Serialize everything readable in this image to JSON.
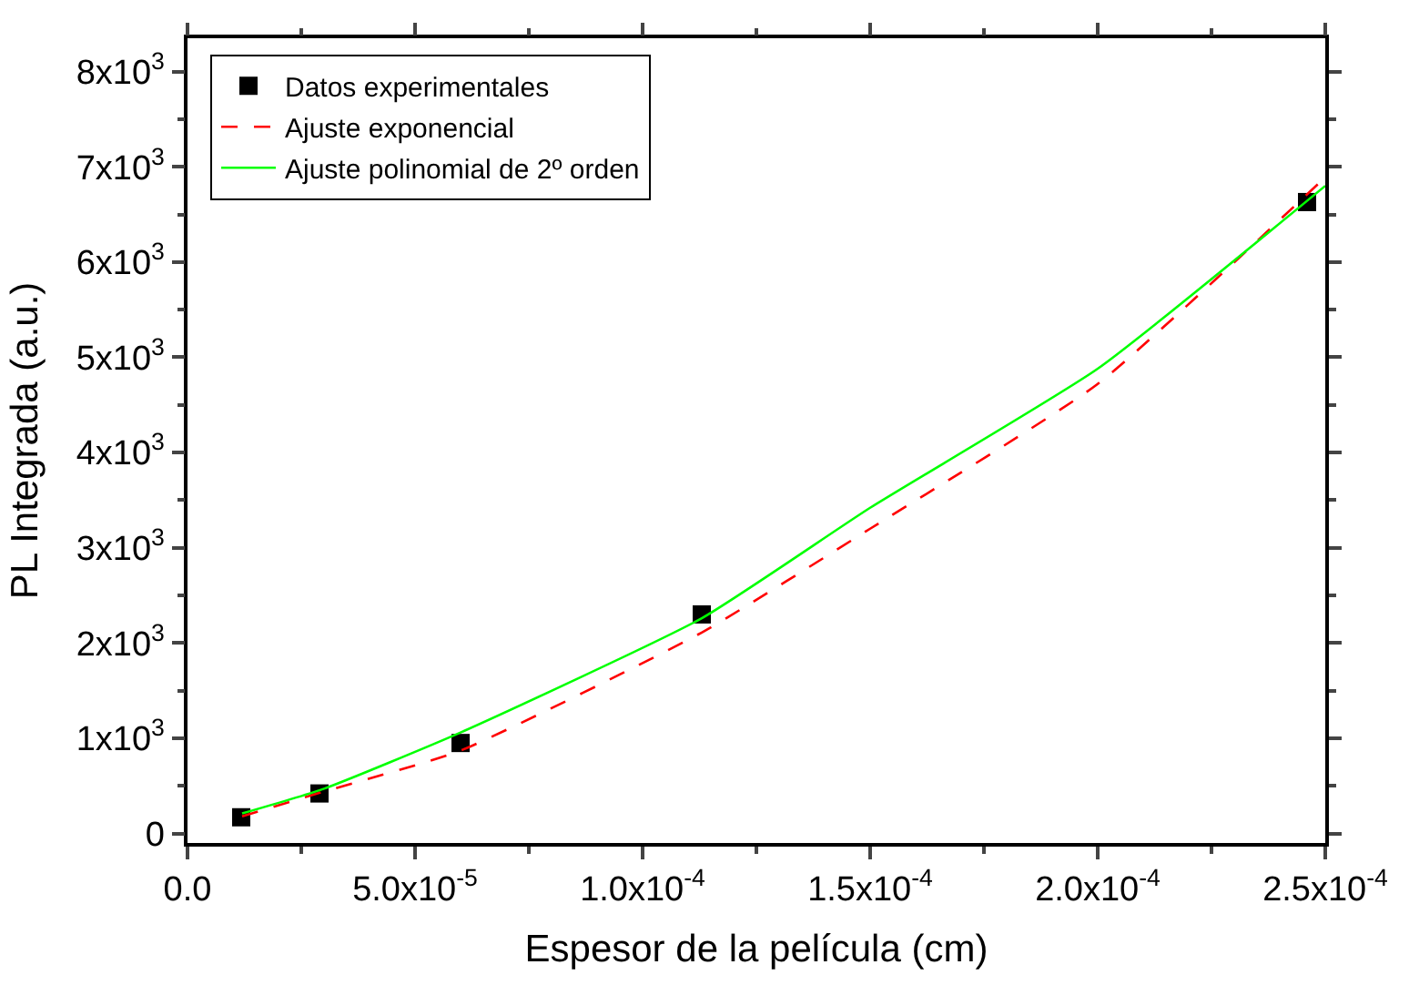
{
  "chart_data": {
    "type": "scatter",
    "xlabel": "Espesor de la película (cm)",
    "ylabel": "PL Integrada (a.u.)",
    "xlim": [
      0,
      0.00025
    ],
    "ylim": [
      -100,
      8350
    ],
    "xticks": [
      {
        "value": 0,
        "label": "0.0"
      },
      {
        "value": 5e-05,
        "label": "5.0x10$^{-5}$"
      },
      {
        "value": 0.0001,
        "label": "1.0x10$^{-4}$"
      },
      {
        "value": 0.00015,
        "label": "1.5x10$^{-4}$"
      },
      {
        "value": 0.0002,
        "label": "2.0x10$^{-4}$"
      },
      {
        "value": 0.00025,
        "label": "2.5x10$^{-4}$"
      }
    ],
    "yticks": [
      0,
      {
        "value": 1000,
        "label": "1x10$^{3}$"
      },
      {
        "value": 2000,
        "label": "2x10$^{3}$"
      },
      {
        "value": 3000,
        "label": "3x10$^{3}$"
      },
      {
        "value": 4000,
        "label": "4x10$^{3}$"
      },
      {
        "value": 5000,
        "label": "5x10$^{3}$"
      },
      {
        "value": 6000,
        "label": "6x10$^{3}$"
      },
      {
        "value": 7000,
        "label": "7x10$^{3}$"
      },
      {
        "value": 8000,
        "label": "8x10$^{3}$"
      }
    ],
    "legend": "top left",
    "series": [
      {
        "name": "Datos experimentales",
        "marker": "square",
        "color": "#000000",
        "x": [
          1.18e-05,
          2.9e-05,
          6e-05,
          0.000113,
          0.000246
        ],
        "values": [
          170,
          420,
          950,
          2300,
          6630
        ]
      },
      {
        "name": "Ajuste exponencial",
        "type": "line",
        "marker": "none",
        "line_style": "dashed",
        "color": "#ff0000",
        "x": [
          1.2e-05,
          3e-05,
          6e-05,
          0.000113,
          0.00015,
          0.0002,
          0.00025
        ],
        "values": [
          180,
          440,
          870,
          2110,
          3200,
          4720,
          6890
        ]
      },
      {
        "name": "Ajuste polinomial de 2º orden",
        "type": "line",
        "marker": "none",
        "line_style": "solid",
        "color": "#00ff00",
        "x": [
          1.2e-05,
          3e-05,
          6e-05,
          0.000113,
          0.00015,
          0.0002,
          0.00025
        ],
        "values": [
          210,
          470,
          1060,
          2260,
          3420,
          4880,
          6800
        ]
      }
    ]
  }
}
